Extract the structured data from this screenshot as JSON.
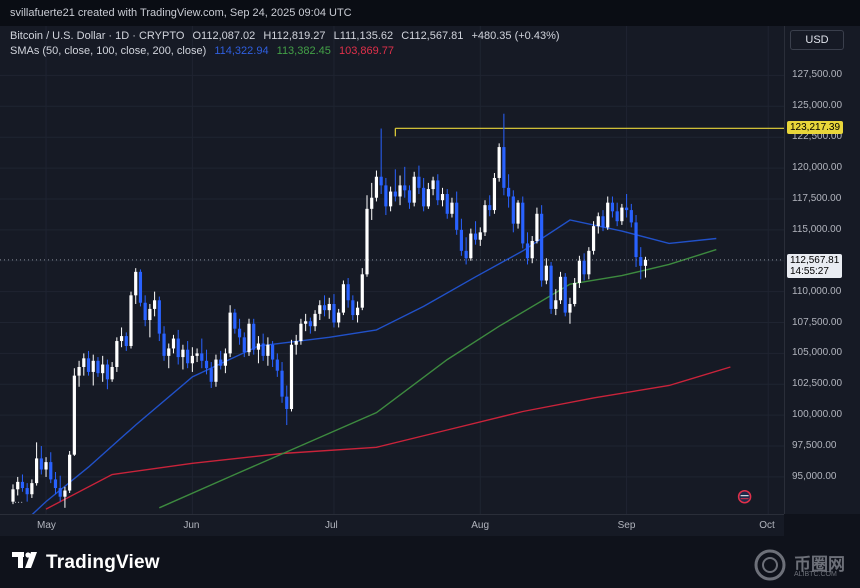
{
  "header": {
    "credit": "svillafuerte21 created with TradingView.com, Sep 24, 2025 09:04 UTC"
  },
  "legend": {
    "symbol": "Bitcoin / U.S. Dollar · 1D · CRYPTO",
    "open": "O112,087.02",
    "high": "H112,819.27",
    "low": "L111,135.62",
    "close": "C112,567.81",
    "change": "+480.35 (+0.43%)",
    "sma_label": "SMAs (50, close, 100, close, 200, close)",
    "sma50": "114,322.94",
    "sma100": "113,382.45",
    "sma200": "103,869.77"
  },
  "currency_button": "USD",
  "more_indicator": "...",
  "footer": {
    "brand": "TradingView",
    "watermark": "币圈网",
    "watermark_sub": "ALIBTC.COM"
  },
  "colors": {
    "up": "#ffffff",
    "down": "#2962ff",
    "sma50": "#2151c9",
    "sma100": "#3d8a3f",
    "sma200": "#c9233a",
    "resistance": "#e8d53a",
    "background": "#161a25"
  },
  "chart_data": {
    "type": "candlestick",
    "title": "Bitcoin / U.S. Dollar · 1D · CRYPTO",
    "y_ticks": [
      "127,500.00",
      "125,000.00",
      "122,500.00",
      "120,000.00",
      "117,500.00",
      "115,000.00",
      "112,500.00",
      "110,000.00",
      "107,500.00",
      "105,000.00",
      "102,500.00",
      "100,000.00",
      "97,500.00",
      "95,000.00"
    ],
    "x_ticks": [
      "May",
      "Jun",
      "Jul",
      "Aug",
      "Sep",
      "Oct"
    ],
    "ylim": [
      92000,
      131500
    ],
    "resistance": {
      "value": 123217.39,
      "label": "123,217.39",
      "from": "2025-07-14"
    },
    "last_price": {
      "value": 112567.81,
      "label": "112,567.81",
      "countdown": "14:55:27"
    },
    "x_start": "2025-04-24",
    "candles_ohlc": [
      [
        93000,
        94400,
        92800,
        94000
      ],
      [
        94000,
        95000,
        93500,
        94600
      ],
      [
        94600,
        95200,
        93800,
        94100
      ],
      [
        94100,
        94500,
        93000,
        93600
      ],
      [
        93600,
        94800,
        93300,
        94500
      ],
      [
        94500,
        97800,
        94300,
        96500
      ],
      [
        96500,
        97500,
        95200,
        95600
      ],
      [
        95600,
        96600,
        95000,
        96200
      ],
      [
        96200,
        97000,
        94500,
        94800
      ],
      [
        94800,
        95400,
        93600,
        94100
      ],
      [
        94100,
        95100,
        93000,
        93400
      ],
      [
        93400,
        94200,
        92500,
        93900
      ],
      [
        93900,
        97100,
        93700,
        96800
      ],
      [
        96800,
        103800,
        96700,
        103200
      ],
      [
        103200,
        104400,
        102300,
        103900
      ],
      [
        103900,
        105000,
        103200,
        104600
      ],
      [
        104600,
        105200,
        103200,
        103500
      ],
      [
        103500,
        104900,
        102400,
        104400
      ],
      [
        104400,
        104700,
        103100,
        103400
      ],
      [
        103400,
        104800,
        102700,
        104100
      ],
      [
        104100,
        104500,
        102100,
        102900
      ],
      [
        102900,
        104300,
        102700,
        103900
      ],
      [
        103900,
        106300,
        103500,
        106000
      ],
      [
        106000,
        107100,
        105500,
        106400
      ],
      [
        106400,
        106700,
        105200,
        105600
      ],
      [
        105600,
        110000,
        105400,
        109700
      ],
      [
        109700,
        111900,
        109000,
        111600
      ],
      [
        111600,
        111800,
        108800,
        109100
      ],
      [
        109100,
        109700,
        107200,
        107700
      ],
      [
        107700,
        109000,
        106300,
        108600
      ],
      [
        108600,
        110000,
        108000,
        109300
      ],
      [
        109300,
        109600,
        106000,
        106600
      ],
      [
        106600,
        107200,
        104400,
        104800
      ],
      [
        104800,
        105800,
        103800,
        105400
      ],
      [
        105400,
        106500,
        105000,
        106200
      ],
      [
        106200,
        106900,
        104100,
        104700
      ],
      [
        104700,
        105700,
        103700,
        105300
      ],
      [
        105300,
        106000,
        103800,
        104200
      ],
      [
        104200,
        105500,
        103500,
        104800
      ],
      [
        104800,
        105400,
        104300,
        105000
      ],
      [
        105000,
        106200,
        103800,
        104400
      ],
      [
        104400,
        105300,
        103300,
        103800
      ],
      [
        103800,
        104300,
        102200,
        102700
      ],
      [
        102700,
        104900,
        102300,
        104500
      ],
      [
        104500,
        105200,
        103700,
        104000
      ],
      [
        104000,
        105400,
        103400,
        105000
      ],
      [
        105000,
        108900,
        104700,
        108300
      ],
      [
        108300,
        108600,
        106600,
        107000
      ],
      [
        107000,
        107800,
        105700,
        106300
      ],
      [
        106300,
        106700,
        104700,
        105100
      ],
      [
        105100,
        107800,
        104800,
        107400
      ],
      [
        107400,
        107800,
        104900,
        105300
      ],
      [
        105300,
        106400,
        104200,
        105800
      ],
      [
        105800,
        106600,
        104400,
        104800
      ],
      [
        104800,
        106300,
        104000,
        105700
      ],
      [
        105700,
        106000,
        103900,
        104500
      ],
      [
        104500,
        105000,
        103100,
        103600
      ],
      [
        103600,
        104300,
        101000,
        101500
      ],
      [
        101500,
        102400,
        99200,
        100500
      ],
      [
        100500,
        106100,
        100300,
        105700
      ],
      [
        105700,
        106500,
        104900,
        106000
      ],
      [
        106000,
        107800,
        105700,
        107400
      ],
      [
        107400,
        108200,
        106800,
        107600
      ],
      [
        107600,
        107900,
        106600,
        107200
      ],
      [
        107200,
        108500,
        106800,
        108200
      ],
      [
        108200,
        109300,
        107700,
        108900
      ],
      [
        108900,
        109700,
        108000,
        108500
      ],
      [
        108500,
        109500,
        107800,
        109000
      ],
      [
        109000,
        109800,
        107100,
        107500
      ],
      [
        107500,
        108600,
        107100,
        108300
      ],
      [
        108300,
        110900,
        108100,
        110600
      ],
      [
        110600,
        111100,
        108700,
        109300
      ],
      [
        109300,
        109700,
        107700,
        108100
      ],
      [
        108100,
        109200,
        107500,
        108700
      ],
      [
        108700,
        111900,
        108500,
        111400
      ],
      [
        111400,
        117800,
        111200,
        116700
      ],
      [
        116700,
        118800,
        115800,
        117600
      ],
      [
        117600,
        119800,
        117300,
        119300
      ],
      [
        119300,
        123200,
        117900,
        118600
      ],
      [
        118600,
        119200,
        116200,
        116900
      ],
      [
        116900,
        118500,
        116500,
        118100
      ],
      [
        118100,
        119900,
        117300,
        117700
      ],
      [
        117700,
        119400,
        117000,
        118600
      ],
      [
        118600,
        120100,
        117600,
        118200
      ],
      [
        118200,
        118600,
        116700,
        117200
      ],
      [
        117200,
        119700,
        116900,
        119300
      ],
      [
        119300,
        120200,
        117900,
        118400
      ],
      [
        118400,
        119200,
        116500,
        116900
      ],
      [
        116900,
        118800,
        116700,
        118300
      ],
      [
        118300,
        119300,
        117800,
        119000
      ],
      [
        119000,
        119500,
        117000,
        117400
      ],
      [
        117400,
        118400,
        116900,
        117900
      ],
      [
        117900,
        118300,
        115900,
        116300
      ],
      [
        116300,
        117600,
        116000,
        117200
      ],
      [
        117200,
        118100,
        114600,
        115000
      ],
      [
        115000,
        115900,
        112900,
        113300
      ],
      [
        113300,
        114400,
        112200,
        112700
      ],
      [
        112700,
        115100,
        112500,
        114700
      ],
      [
        114700,
        115700,
        113800,
        114200
      ],
      [
        114200,
        115200,
        113700,
        114800
      ],
      [
        114800,
        117400,
        114500,
        117000
      ],
      [
        117000,
        117800,
        116100,
        116600
      ],
      [
        116600,
        119600,
        116300,
        119200
      ],
      [
        119200,
        122000,
        118900,
        121700
      ],
      [
        121700,
        124400,
        117800,
        118400
      ],
      [
        118400,
        119500,
        116800,
        117700
      ],
      [
        117700,
        118200,
        114800,
        115500
      ],
      [
        115500,
        117400,
        115100,
        117200
      ],
      [
        117200,
        117700,
        113500,
        113900
      ],
      [
        113900,
        114800,
        112200,
        112700
      ],
      [
        112700,
        114500,
        112300,
        114100
      ],
      [
        114100,
        116800,
        113900,
        116300
      ],
      [
        116300,
        117000,
        110400,
        110900
      ],
      [
        110900,
        112700,
        110600,
        112100
      ],
      [
        112100,
        112400,
        108200,
        108600
      ],
      [
        108600,
        110200,
        108100,
        109300
      ],
      [
        109300,
        111600,
        109000,
        111200
      ],
      [
        111200,
        111500,
        108000,
        108300
      ],
      [
        108300,
        109500,
        107400,
        109000
      ],
      [
        109000,
        111100,
        108800,
        110700
      ],
      [
        110700,
        112900,
        110300,
        112500
      ],
      [
        112500,
        113100,
        110900,
        111400
      ],
      [
        111400,
        113600,
        111000,
        113300
      ],
      [
        113300,
        115700,
        113000,
        115300
      ],
      [
        115300,
        116400,
        114700,
        116100
      ],
      [
        116100,
        116600,
        114900,
        115200
      ],
      [
        115200,
        117700,
        115000,
        117200
      ],
      [
        117200,
        117700,
        116000,
        116500
      ],
      [
        116500,
        117200,
        115300,
        115700
      ],
      [
        115700,
        117100,
        115400,
        116800
      ],
      [
        116800,
        117900,
        116000,
        116600
      ],
      [
        116600,
        117100,
        115200,
        115600
      ],
      [
        115600,
        116200,
        112000,
        112800
      ],
      [
        112800,
        113600,
        111000,
        112087
      ],
      [
        112087,
        112819,
        111136,
        112568
      ]
    ],
    "sma50": [
      [
        2025,
        4,
        24,
        90500
      ],
      [
        2025,
        5,
        1,
        93000
      ],
      [
        2025,
        5,
        10,
        95800
      ],
      [
        2025,
        5,
        20,
        99200
      ],
      [
        2025,
        6,
        1,
        103100
      ],
      [
        2025,
        6,
        15,
        105600
      ],
      [
        2025,
        6,
        30,
        106300
      ],
      [
        2025,
        7,
        10,
        106900
      ],
      [
        2025,
        7,
        20,
        108800
      ],
      [
        2025,
        7,
        31,
        111200
      ],
      [
        2025,
        8,
        10,
        113300
      ],
      [
        2025,
        8,
        20,
        115800
      ],
      [
        2025,
        8,
        31,
        114900
      ],
      [
        2025,
        9,
        10,
        113900
      ],
      [
        2025,
        9,
        20,
        114300
      ]
    ],
    "sma100": [
      [
        2025,
        5,
        25,
        92500
      ],
      [
        2025,
        6,
        10,
        95200
      ],
      [
        2025,
        6,
        25,
        97700
      ],
      [
        2025,
        7,
        10,
        100200
      ],
      [
        2025,
        7,
        25,
        104500
      ],
      [
        2025,
        8,
        5,
        107200
      ],
      [
        2025,
        8,
        20,
        110600
      ],
      [
        2025,
        8,
        31,
        111300
      ],
      [
        2025,
        9,
        10,
        112200
      ],
      [
        2025,
        9,
        20,
        113400
      ]
    ],
    "sma200": [
      [
        2025,
        5,
        1,
        92400
      ],
      [
        2025,
        5,
        15,
        95200
      ],
      [
        2025,
        6,
        1,
        96100
      ],
      [
        2025,
        6,
        20,
        96900
      ],
      [
        2025,
        7,
        10,
        97400
      ],
      [
        2025,
        7,
        25,
        98800
      ],
      [
        2025,
        8,
        10,
        100300
      ],
      [
        2025,
        8,
        25,
        101400
      ],
      [
        2025,
        9,
        10,
        102400
      ],
      [
        2025,
        9,
        23,
        103900
      ]
    ],
    "month_starts": [
      [
        "May",
        2025,
        5,
        1
      ],
      [
        "Jun",
        2025,
        6,
        1
      ],
      [
        "Jul",
        2025,
        7,
        1
      ],
      [
        "Aug",
        2025,
        8,
        1
      ],
      [
        "Sep",
        2025,
        9,
        1
      ],
      [
        "Oct",
        2025,
        10,
        1
      ]
    ]
  }
}
